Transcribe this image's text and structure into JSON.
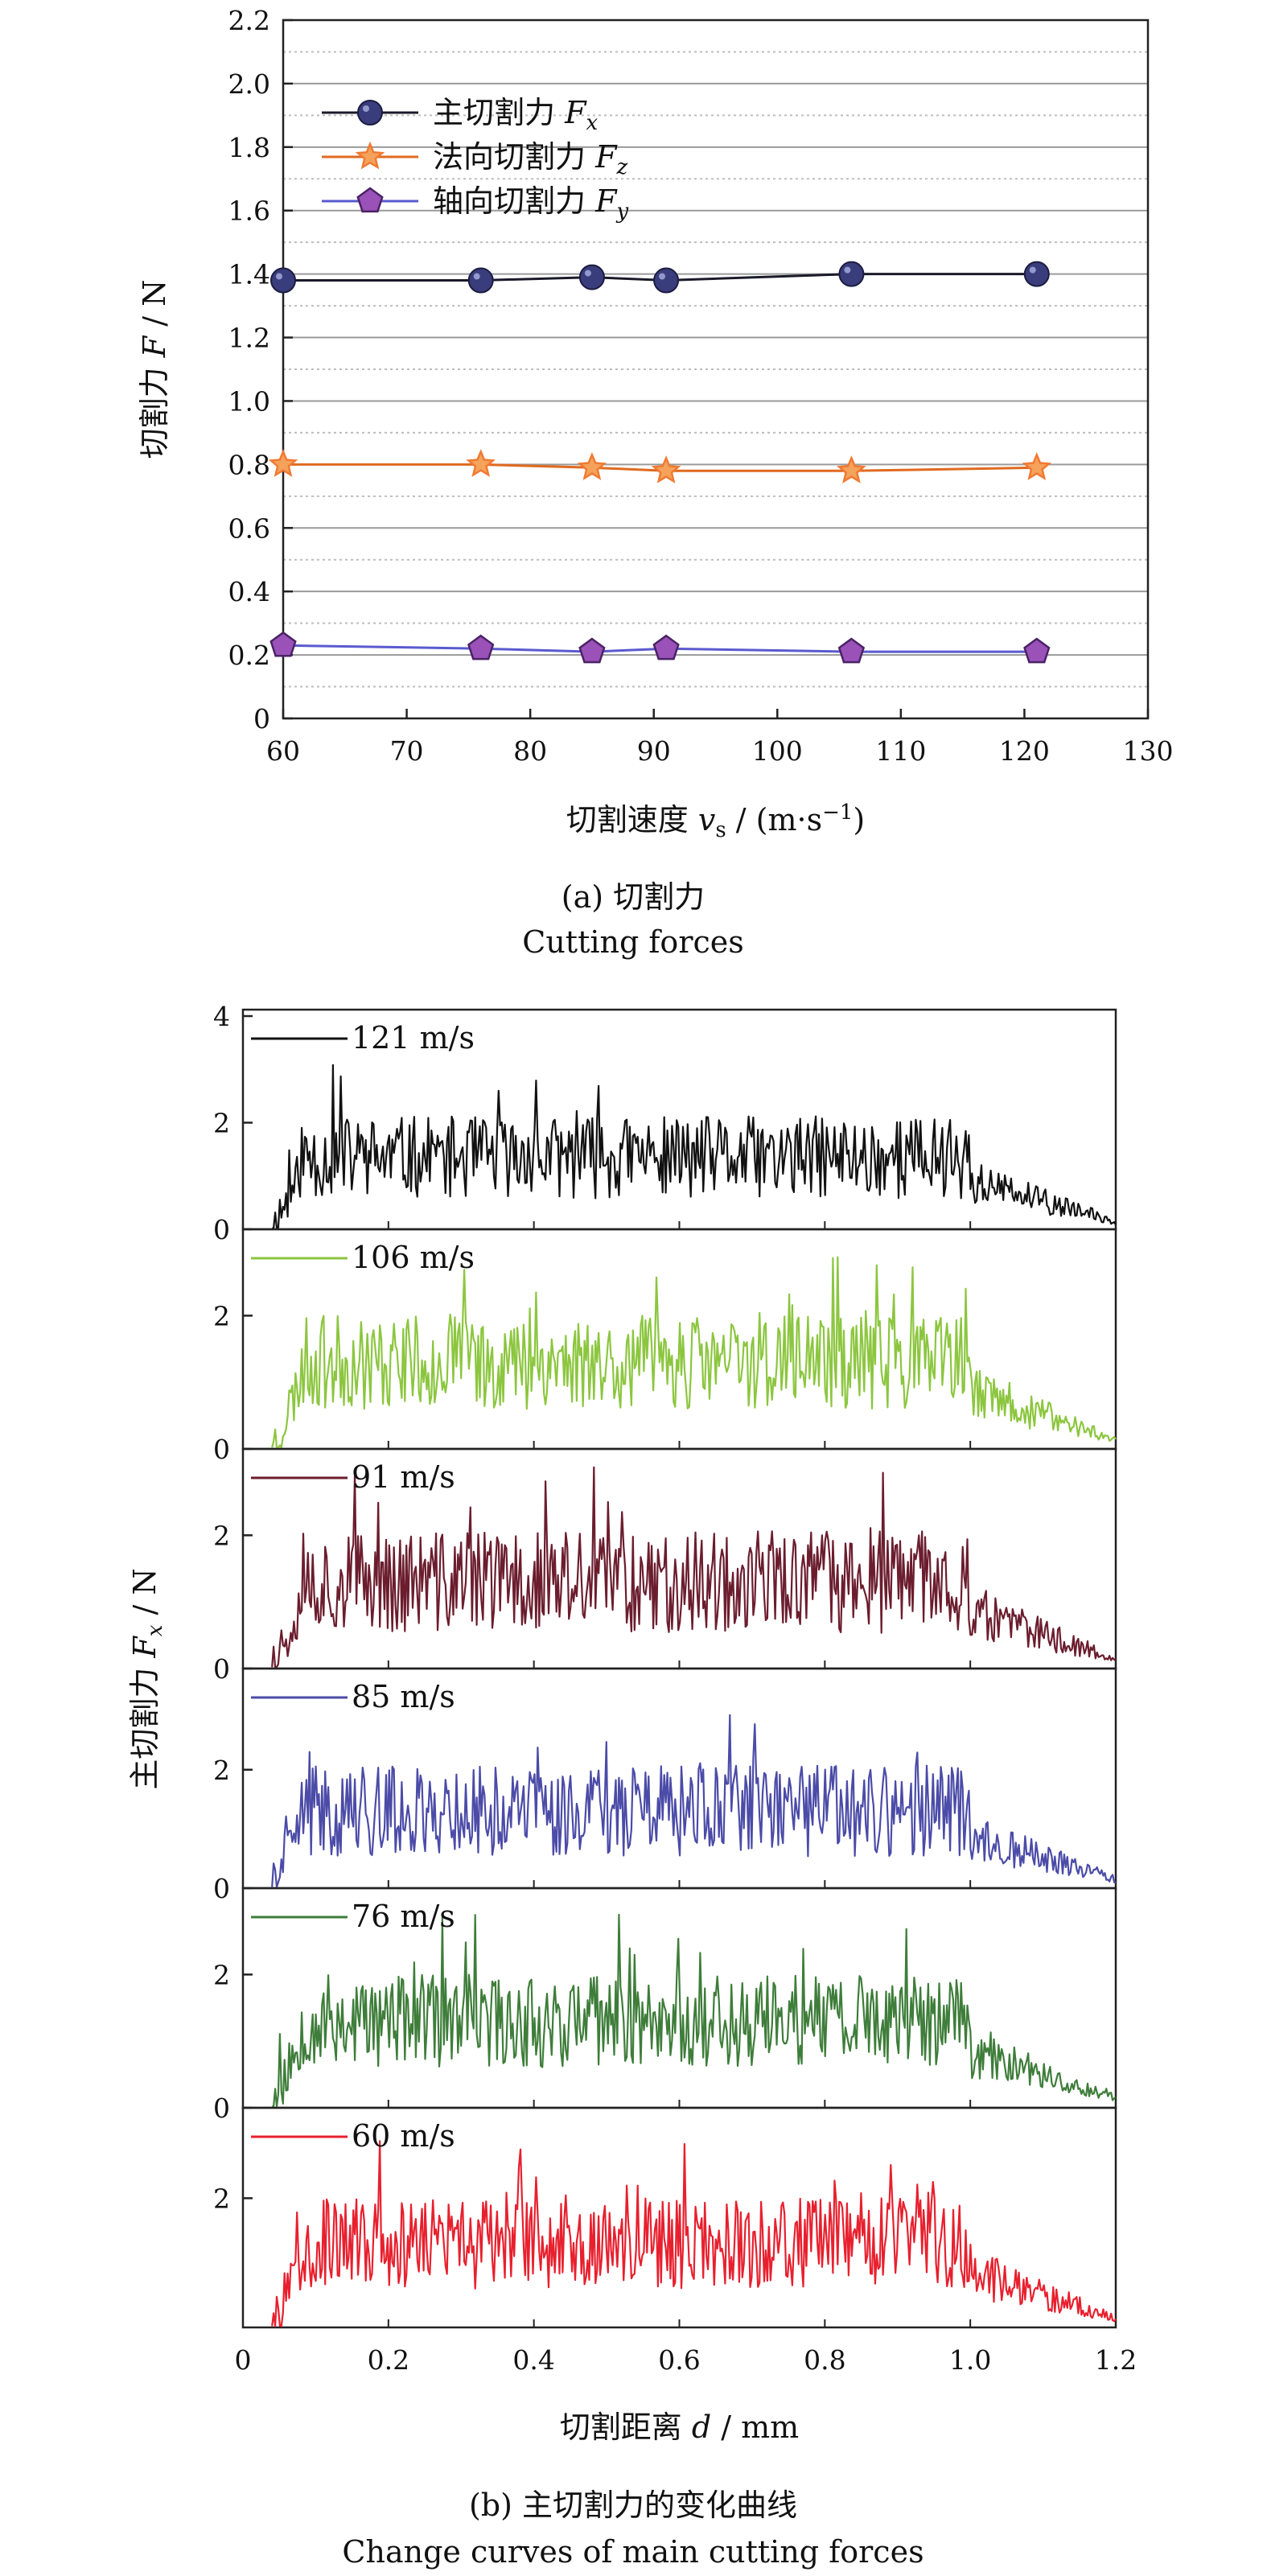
{
  "chart_data": [
    {
      "type": "line",
      "panel": "a",
      "x": [
        60,
        76,
        85,
        91,
        106,
        121
      ],
      "series": [
        {
          "name": "主切割力 F",
          "sub": "x",
          "marker": "circle",
          "color": "#3a3d7c",
          "values": [
            1.38,
            1.38,
            1.39,
            1.38,
            1.4,
            1.4
          ]
        },
        {
          "name": "法向切割力 F",
          "sub": "z",
          "marker": "star",
          "color": "#f07a32",
          "values": [
            0.8,
            0.8,
            0.79,
            0.78,
            0.78,
            0.79
          ]
        },
        {
          "name": "轴向切割力 F",
          "sub": "y",
          "marker": "pentagon",
          "color": "#9a52b8",
          "values": [
            0.23,
            0.22,
            0.21,
            0.22,
            0.21,
            0.21
          ]
        }
      ],
      "xlim": [
        60,
        130
      ],
      "ylim": [
        0,
        2.2
      ],
      "xticks": [
        "60",
        "70",
        "80",
        "90",
        "100",
        "110",
        "120",
        "130"
      ],
      "yticks": [
        "0",
        "0.2",
        "0.4",
        "0.6",
        "0.8",
        "1.0",
        "1.2",
        "1.4",
        "1.6",
        "1.8",
        "2.0",
        "2.2"
      ],
      "xlabel": {
        "main": "切割速度 ",
        "var": "v",
        "sub": "s",
        "unit": " / (m·s",
        "sup": "−1",
        "end": ")"
      },
      "ylabel": {
        "main": "切割力 ",
        "var": "F",
        "unit": " / N"
      },
      "grid": "horizontal dashed + solid",
      "legend": "top-left",
      "caption_cn": "(a) 切割力",
      "caption_en": "Cutting forces"
    },
    {
      "type": "line",
      "panel": "b",
      "xlim": [
        0,
        1.2
      ],
      "xticks": [
        "0",
        "0.2",
        "0.4",
        "0.6",
        "0.8",
        "1.0",
        "1.2"
      ],
      "xlabel": {
        "main": "切割距离 ",
        "var": "d",
        "unit": " / mm"
      },
      "ylabel": {
        "main": "主切割力 ",
        "var": "F",
        "sub": "x",
        "unit": " / N"
      },
      "legend": "top-left of each strip",
      "series": [
        {
          "name": "121 m/s",
          "color": "#111111",
          "yticks": [
            "0",
            "2",
            "4"
          ],
          "ylim": [
            0,
            4
          ],
          "base": 1.35,
          "amp": 0.55,
          "seed": 11
        },
        {
          "name": "106 m/s",
          "color": "#8cc63f",
          "yticks": [
            "0",
            "2"
          ],
          "ylim": [
            0,
            3.2
          ],
          "base": 1.3,
          "amp": 0.5,
          "seed": 23
        },
        {
          "name": "91 m/s",
          "color": "#6b1d2e",
          "yticks": [
            "0",
            "2"
          ],
          "ylim": [
            0,
            3.2
          ],
          "base": 1.3,
          "amp": 0.55,
          "seed": 37
        },
        {
          "name": "85 m/s",
          "color": "#4b4ba8",
          "yticks": [
            "0",
            "2"
          ],
          "ylim": [
            0,
            3.6
          ],
          "base": 1.3,
          "amp": 0.55,
          "seed": 41
        },
        {
          "name": "76 m/s",
          "color": "#3e7d3a",
          "yticks": [
            "0",
            "2"
          ],
          "ylim": [
            0,
            3.2
          ],
          "base": 1.3,
          "amp": 0.5,
          "seed": 53
        },
        {
          "name": "60 m/s",
          "color": "#e8202e",
          "yticks": [
            "2"
          ],
          "ylim": [
            0,
            3.3
          ],
          "base": 1.3,
          "amp": 0.5,
          "seed": 67
        }
      ],
      "caption_cn": "(b) 主切割力的变化曲线",
      "caption_en": "Change curves of main cutting forces"
    }
  ]
}
